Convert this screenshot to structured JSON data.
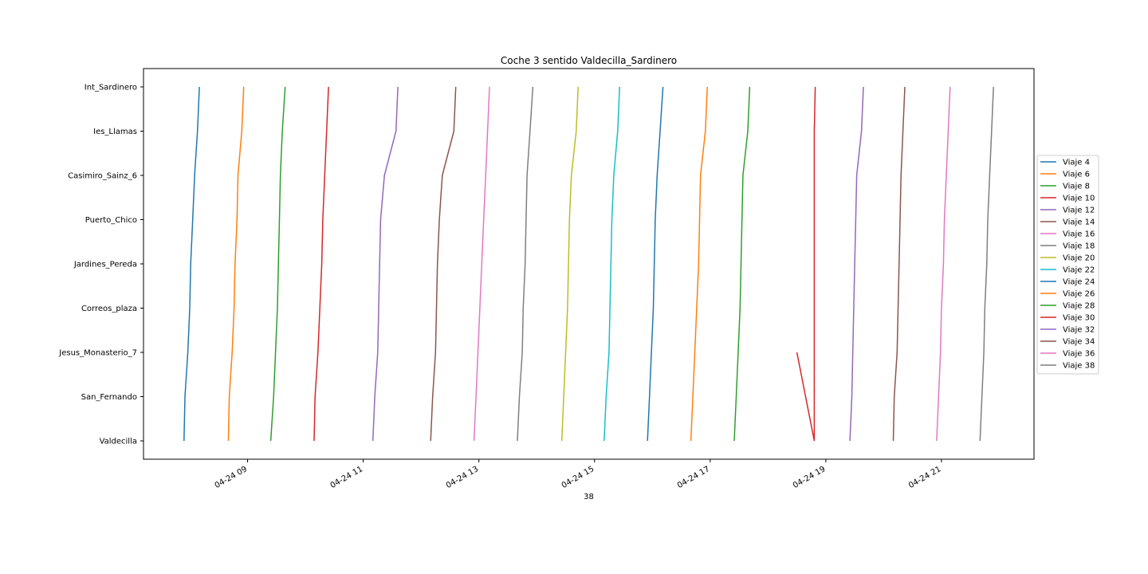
{
  "chart_data": {
    "type": "line",
    "title": "Coche 3 sentido Valdecilla_Sardinero",
    "xlabel": "38",
    "ylabel": "",
    "grid": false,
    "legend_position": "right",
    "x_ticks": [
      "04-24 09",
      "04-24 11",
      "04-24 13",
      "04-24 15",
      "04-24 17",
      "04-24 19",
      "04-24 21"
    ],
    "x_range": [
      "2024-04-24 07:12",
      "2024-04-24 22:36"
    ],
    "stops": [
      "Valdecilla",
      "San_Fernando",
      "Jesus_Monasterio_7",
      "Correos_plaza",
      "Jardines_Pereda",
      "Puerto_Chico",
      "Casimiro_Sainz_6",
      "Ies_Llamas",
      "Int_Sardinero"
    ],
    "series": [
      {
        "name": "Viaje 4",
        "color": "#1f77b4",
        "times": [
          "07:54",
          "07:55",
          "07:58",
          "08:00",
          "08:01",
          "08:03",
          "08:05",
          "08:08",
          "08:10"
        ],
        "stop_index": [
          0,
          1,
          2,
          3,
          4,
          5,
          6,
          7,
          8
        ]
      },
      {
        "name": "Viaje 6",
        "color": "#ff7f0e",
        "times": [
          "08:40",
          "08:41",
          "08:44",
          "08:46",
          "08:47",
          "08:49",
          "08:50",
          "08:54",
          "08:56"
        ],
        "stop_index": [
          0,
          1,
          2,
          3,
          4,
          5,
          6,
          7,
          8
        ]
      },
      {
        "name": "Viaje 8",
        "color": "#2ca02c",
        "times": [
          "09:24",
          "09:27",
          "09:29",
          "09:31",
          "09:32",
          "09:33",
          "09:34",
          "09:36",
          "09:39"
        ],
        "stop_index": [
          0,
          1,
          2,
          3,
          4,
          5,
          6,
          7,
          8
        ]
      },
      {
        "name": "Viaje 10",
        "color": "#d62728",
        "times": [
          "10:09",
          "10:10",
          "10:13",
          "10:15",
          "10:17",
          "10:18",
          "10:20",
          "10:22",
          "10:24"
        ],
        "stop_index": [
          0,
          1,
          2,
          3,
          4,
          5,
          6,
          7,
          8
        ]
      },
      {
        "name": "Viaje 12",
        "color": "#9467bd",
        "times": [
          "11:10",
          "11:12",
          "11:15",
          "11:16",
          "11:17",
          "11:18",
          "11:22",
          "11:34",
          "11:36"
        ],
        "stop_index": [
          0,
          1,
          2,
          3,
          4,
          5,
          6,
          7,
          8
        ]
      },
      {
        "name": "Viaje 14",
        "color": "#8c564b",
        "times": [
          "12:10",
          "12:12",
          "12:15",
          "12:16",
          "12:17",
          "12:19",
          "12:22",
          "12:34",
          "12:36"
        ],
        "stop_index": [
          0,
          1,
          2,
          3,
          4,
          5,
          6,
          7,
          8
        ]
      },
      {
        "name": "Viaje 16",
        "color": "#e377c2",
        "times": [
          "12:55",
          "12:57",
          "12:59",
          "13:01",
          "13:03",
          "13:05",
          "13:07",
          "13:09",
          "13:11"
        ],
        "stop_index": [
          0,
          1,
          2,
          3,
          4,
          5,
          6,
          7,
          8
        ]
      },
      {
        "name": "Viaje 18",
        "color": "#7f7f7f",
        "times": [
          "13:40",
          "13:42",
          "13:45",
          "13:46",
          "13:48",
          "13:49",
          "13:50",
          "13:53",
          "13:56"
        ],
        "stop_index": [
          0,
          1,
          2,
          3,
          4,
          5,
          6,
          7,
          8
        ]
      },
      {
        "name": "Viaje 20",
        "color": "#bcbd22",
        "times": [
          "14:26",
          "14:28",
          "14:30",
          "14:32",
          "14:33",
          "14:34",
          "14:36",
          "14:41",
          "14:43"
        ],
        "stop_index": [
          0,
          1,
          2,
          3,
          4,
          5,
          6,
          7,
          8
        ]
      },
      {
        "name": "Viaje 22",
        "color": "#17becf",
        "times": [
          "15:10",
          "15:12",
          "15:15",
          "15:16",
          "15:17",
          "15:18",
          "15:20",
          "15:24",
          "15:26"
        ],
        "stop_index": [
          0,
          1,
          2,
          3,
          4,
          5,
          6,
          7,
          8
        ]
      },
      {
        "name": "Viaje 24",
        "color": "#1f77b4",
        "times": [
          "15:55",
          "15:57",
          "15:59",
          "16:01",
          "16:02",
          "16:03",
          "16:05",
          "16:08",
          "16:11"
        ],
        "stop_index": [
          0,
          1,
          2,
          3,
          4,
          5,
          6,
          7,
          8
        ]
      },
      {
        "name": "Viaje 26",
        "color": "#ff7f0e",
        "times": [
          "16:40",
          "16:42",
          "16:44",
          "16:46",
          "16:48",
          "16:49",
          "16:50",
          "16:55",
          "16:57"
        ],
        "stop_index": [
          0,
          1,
          2,
          3,
          4,
          5,
          6,
          7,
          8
        ]
      },
      {
        "name": "Viaje 28",
        "color": "#2ca02c",
        "times": [
          "17:25",
          "17:27",
          "17:29",
          "17:31",
          "17:32",
          "17:33",
          "17:34",
          "17:39",
          "17:41"
        ],
        "stop_index": [
          0,
          1,
          2,
          3,
          4,
          5,
          6,
          7,
          8
        ]
      },
      {
        "name": "Viaje 30",
        "color": "#d62728",
        "times": [
          "18:30",
          "18:48",
          "18:48",
          "18:48",
          "18:48",
          "18:48",
          "18:48",
          "18:48",
          "18:49"
        ],
        "stop_index": [
          2,
          0,
          1,
          2,
          3,
          4,
          5,
          7,
          8
        ]
      },
      {
        "name": "Viaje 32",
        "color": "#9467bd",
        "times": [
          "19:25",
          "19:27",
          "19:28",
          "19:29",
          "19:30",
          "19:31",
          "19:32",
          "19:37",
          "19:39"
        ],
        "stop_index": [
          0,
          1,
          2,
          3,
          4,
          5,
          6,
          7,
          8
        ]
      },
      {
        "name": "Viaje 34",
        "color": "#8c564b",
        "times": [
          "20:10",
          "20:11",
          "20:14",
          "20:15",
          "20:16",
          "20:17",
          "20:18",
          "20:20",
          "20:22"
        ],
        "stop_index": [
          0,
          1,
          2,
          3,
          4,
          5,
          6,
          7,
          8
        ]
      },
      {
        "name": "Viaje 36",
        "color": "#e377c2",
        "times": [
          "20:55",
          "20:57",
          "20:59",
          "21:00",
          "21:02",
          "21:03",
          "21:05",
          "21:07",
          "21:09"
        ],
        "stop_index": [
          0,
          1,
          2,
          3,
          4,
          5,
          6,
          7,
          8
        ]
      },
      {
        "name": "Viaje 38",
        "color": "#7f7f7f",
        "times": [
          "21:40",
          "21:42",
          "21:44",
          "21:45",
          "21:47",
          "21:48",
          "21:50",
          "21:52",
          "21:54"
        ],
        "stop_index": [
          0,
          1,
          2,
          3,
          4,
          5,
          6,
          7,
          8
        ]
      }
    ]
  }
}
